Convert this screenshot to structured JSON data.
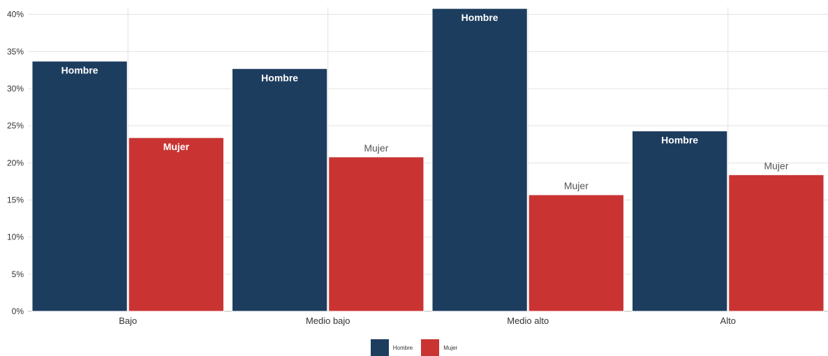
{
  "chart_data": {
    "type": "bar",
    "title": "",
    "xlabel": "",
    "ylabel": "",
    "categories": [
      "Bajo",
      "Medio bajo",
      "Medio alto",
      "Alto"
    ],
    "series": [
      {
        "name": "Hombre",
        "color": "#1d3d5f",
        "values": [
          33.7,
          32.7,
          40.8,
          24.3
        ]
      },
      {
        "name": "Mujer",
        "color": "#c93433",
        "values": [
          23.4,
          20.8,
          15.7,
          18.4
        ]
      }
    ],
    "ylim": [
      0,
      41
    ],
    "yticks": [
      0,
      5,
      10,
      15,
      20,
      25,
      30,
      35,
      40
    ],
    "ytick_labels": [
      "0%",
      "5%",
      "10%",
      "15%",
      "20%",
      "25%",
      "30%",
      "35%",
      "40%"
    ],
    "grid": true,
    "legend_position": "bottom",
    "data_labels": [
      [
        "Hombre",
        "Hombre",
        "Hombre",
        "Hombre"
      ],
      [
        "Mujer",
        "Mujer",
        "Mujer",
        "Mujer"
      ]
    ],
    "data_label_inside": [
      [
        true,
        true,
        true,
        true
      ],
      [
        true,
        false,
        false,
        false
      ]
    ]
  },
  "legend": {
    "items": [
      {
        "label": "Hombre",
        "color": "#1d3d5f"
      },
      {
        "label": "Mujer",
        "color": "#c93433"
      }
    ]
  }
}
